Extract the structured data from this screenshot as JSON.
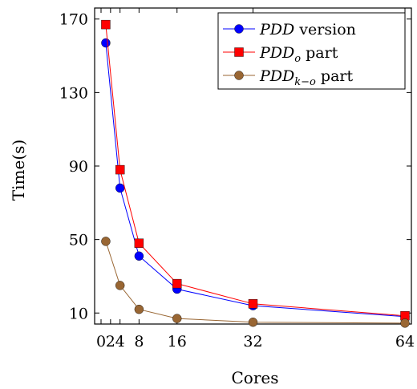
{
  "chart_data": {
    "type": "line",
    "xlabel": "Cores",
    "ylabel": "Time(s)",
    "xlim": [
      0,
      64
    ],
    "ylim": [
      4,
      176
    ],
    "xticks": [
      0,
      2,
      4,
      8,
      16,
      32,
      64
    ],
    "xtick_labels": [
      "0",
      "2",
      "4",
      "8",
      "16",
      "32",
      "64"
    ],
    "yticks": [
      10,
      50,
      90,
      130,
      170
    ],
    "grid": false,
    "legend_position": "top-right",
    "series": [
      {
        "name": "PDD version",
        "legend_main": "PDD",
        "legend_sub": "",
        "legend_suffix": " version",
        "color": "#0000ff",
        "marker": "circle",
        "x": [
          1,
          4,
          8,
          16,
          32,
          64
        ],
        "values": [
          157,
          78,
          41,
          23,
          14,
          8
        ]
      },
      {
        "name": "PDD_o part",
        "legend_main": "PDD",
        "legend_sub": "o",
        "legend_suffix": " part",
        "color": "#ff0000",
        "marker": "square",
        "x": [
          1,
          4,
          8,
          16,
          32,
          64
        ],
        "values": [
          167,
          88,
          48,
          26,
          15,
          8.5
        ]
      },
      {
        "name": "PDD_k-o part",
        "legend_main": "PDD",
        "legend_sub": "k−o",
        "legend_suffix": " part",
        "color": "#996633",
        "marker": "circle",
        "x": [
          1,
          4,
          8,
          16,
          32,
          64
        ],
        "values": [
          49,
          25,
          12,
          7,
          5,
          4.5
        ]
      }
    ]
  }
}
